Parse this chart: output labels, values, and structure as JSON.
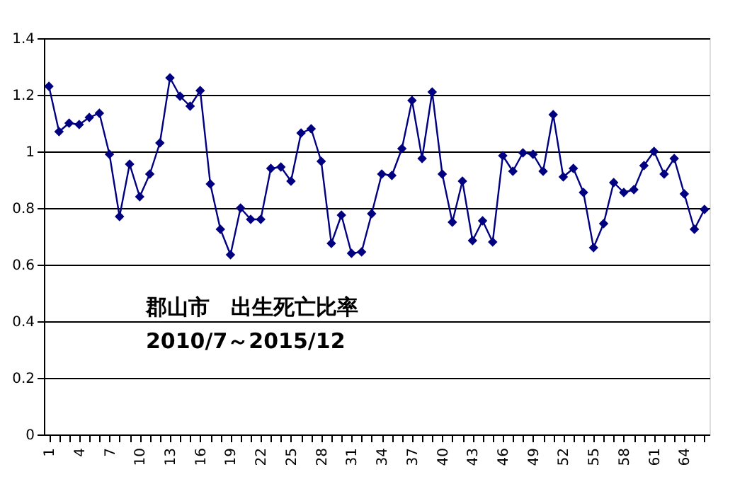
{
  "chart_data": {
    "type": "line",
    "categories": [
      "1",
      null,
      null,
      "4",
      null,
      null,
      "7",
      null,
      null,
      "10",
      null,
      null,
      "13",
      null,
      null,
      "16",
      null,
      null,
      "19",
      null,
      null,
      "22",
      null,
      null,
      "25",
      null,
      null,
      "28",
      null,
      null,
      "31",
      null,
      null,
      "34",
      null,
      null,
      "37",
      null,
      null,
      "40",
      null,
      null,
      "43",
      null,
      null,
      "46",
      null,
      null,
      "49",
      null,
      null,
      "52",
      null,
      null,
      "55",
      null,
      null,
      "58",
      null,
      null,
      "61",
      null,
      null,
      "64",
      null,
      null
    ],
    "series": [
      {
        "color": "#000080",
        "values": [
          1.23,
          1.07,
          1.1,
          1.095,
          1.12,
          1.135,
          0.99,
          0.77,
          0.955,
          0.84,
          0.92,
          1.03,
          1.26,
          1.195,
          1.16,
          1.215,
          0.885,
          0.725,
          0.635,
          0.8,
          0.76,
          0.76,
          0.94,
          0.945,
          0.895,
          1.065,
          1.08,
          0.965,
          0.675,
          0.775,
          0.64,
          0.645,
          0.78,
          0.92,
          0.915,
          1.01,
          1.18,
          0.975,
          1.21,
          0.92,
          0.75,
          0.895,
          0.685,
          0.755,
          0.68,
          0.985,
          0.93,
          0.995,
          0.99,
          0.93,
          1.13,
          0.91,
          0.94,
          0.855,
          0.66,
          0.745,
          0.89,
          0.855,
          0.865,
          0.95,
          1.0,
          0.92,
          0.975,
          0.85,
          0.725,
          0.795
        ]
      }
    ],
    "ylim": [
      0,
      1.4
    ],
    "yticks": [
      0,
      0.2,
      0.4,
      0.6,
      0.8,
      1,
      1.2,
      1.4
    ],
    "grid": "y",
    "marker": "diamond",
    "line_style": "solid",
    "annotations": [
      "郡山市　出生死亡比率",
      "2010/7～2015/12"
    ]
  }
}
